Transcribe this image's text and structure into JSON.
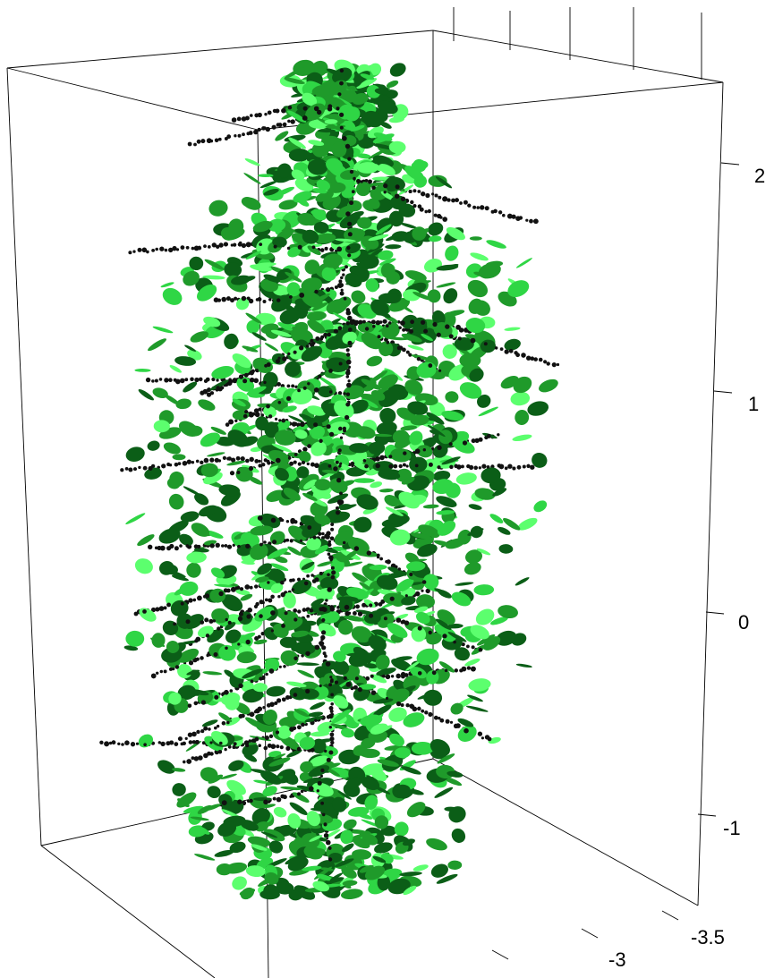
{
  "plot": {
    "type": "3d-point-cloud",
    "subject": "tree",
    "colors": {
      "background": "#ffffff",
      "box": "#000000",
      "branch_points": "#111111",
      "leaf_dark": "#0b5e17",
      "leaf_mid": "#1f9a2a",
      "leaf_light": "#2fd645",
      "leaf_pale": "#5cff6e"
    },
    "z_axis": {
      "ticks": [
        {
          "value": 2,
          "label": "2"
        },
        {
          "value": 1,
          "label": "1"
        },
        {
          "value": 0,
          "label": "0"
        },
        {
          "value": -1,
          "label": "-1"
        }
      ]
    },
    "y_axis": {
      "ticks": [
        {
          "value": -3.5,
          "label": "-3.5"
        },
        {
          "value": -3,
          "label": "-3"
        }
      ]
    }
  }
}
